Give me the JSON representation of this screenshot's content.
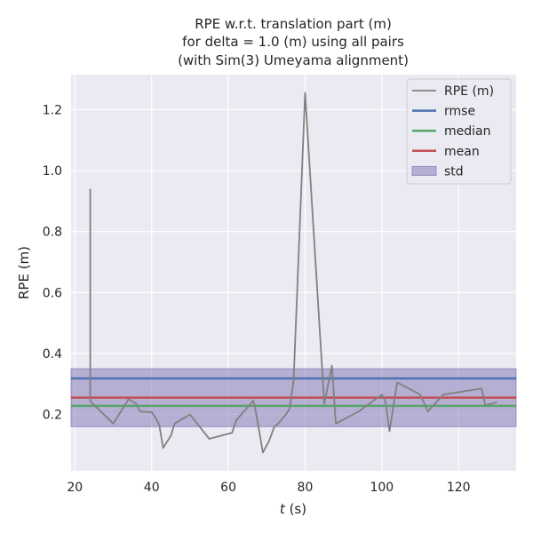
{
  "chart_data": {
    "type": "line",
    "title": [
      "RPE w.r.t. translation part (m)",
      "for delta = 1.0 (m) using all pairs",
      "(with Sim(3) Umeyama alignment)"
    ],
    "xlabel": "t (s)",
    "xlabel_var": "t",
    "xlabel_unit": " (s)",
    "ylabel": "RPE (m)",
    "xlim": [
      19,
      135
    ],
    "ylim": [
      0.015,
      1.315
    ],
    "xticks": [
      20,
      40,
      60,
      80,
      100,
      120
    ],
    "yticks": [
      0.2,
      0.4,
      0.6,
      0.8,
      1.0,
      1.2
    ],
    "ytick_labels": [
      "0.2",
      "0.4",
      "0.6",
      "0.8",
      "1.0",
      "1.2"
    ],
    "grid": true,
    "legend_position": "top-right",
    "series": [
      {
        "name": "RPE (m)",
        "color": "#808080",
        "x": [
          24,
          24,
          24.3,
          30,
          34,
          36,
          37,
          40,
          41,
          42,
          43,
          45,
          46,
          50,
          55,
          61,
          62,
          66.5,
          67,
          69,
          70.5,
          72,
          73,
          75,
          76,
          77,
          80,
          85,
          87,
          88,
          94,
          100,
          101,
          102,
          104,
          110,
          112,
          116,
          126,
          127,
          130
        ],
        "y": [
          0.94,
          0.245,
          0.24,
          0.17,
          0.25,
          0.235,
          0.21,
          0.207,
          0.19,
          0.165,
          0.09,
          0.13,
          0.17,
          0.2,
          0.12,
          0.14,
          0.18,
          0.245,
          0.22,
          0.075,
          0.11,
          0.16,
          0.17,
          0.2,
          0.22,
          0.31,
          1.255,
          0.235,
          0.36,
          0.17,
          0.21,
          0.265,
          0.24,
          0.145,
          0.305,
          0.265,
          0.21,
          0.265,
          0.285,
          0.23,
          0.24
        ]
      }
    ],
    "stats": {
      "rmse": 0.318,
      "median": 0.228,
      "mean": 0.255,
      "std_low": 0.16,
      "std_high": 0.35
    },
    "legend": [
      {
        "label": "RPE (m)",
        "kind": "line",
        "color": "#808080"
      },
      {
        "label": "rmse",
        "kind": "line",
        "color": "#4c72b0"
      },
      {
        "label": "median",
        "kind": "line",
        "color": "#55a868"
      },
      {
        "label": "mean",
        "kind": "line",
        "color": "#c44e52"
      },
      {
        "label": "std",
        "kind": "patch",
        "color": "#8172b3"
      }
    ],
    "colors": {
      "plot_bg": "#eaeaf2",
      "grid": "#ffffff",
      "rmse": "#4c72b0",
      "median": "#55a868",
      "mean": "#c44e52",
      "std": "#8172b3"
    }
  }
}
